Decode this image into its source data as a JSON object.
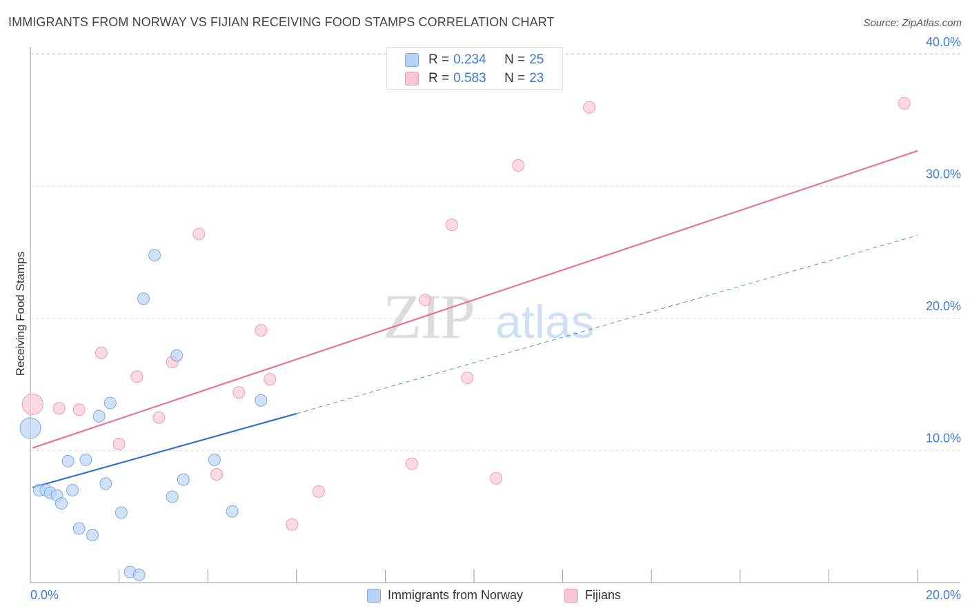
{
  "header": {
    "title": "IMMIGRANTS FROM NORWAY VS FIJIAN RECEIVING FOOD STAMPS CORRELATION CHART",
    "source": "Source: ZipAtlas.com"
  },
  "watermark": {
    "part1": "ZIP",
    "part2": "atlas"
  },
  "legend": {
    "rows": [
      {
        "r_label": "R =",
        "r_value": "0.234",
        "n_label": "N =",
        "n_value": "25"
      },
      {
        "r_label": "R =",
        "r_value": "0.583",
        "n_label": "N =",
        "n_value": "23"
      }
    ]
  },
  "bottom_legend": {
    "items": [
      {
        "label": "Immigrants from Norway"
      },
      {
        "label": "Fijians"
      }
    ]
  },
  "colors": {
    "norway_fill": "#b8d3f5",
    "norway_stroke": "#7ea9e0",
    "norway_line": "#2f73c9",
    "fijian_fill": "#f9c6d4",
    "fijian_stroke": "#ec9bb3",
    "fijian_line": "#e5739a",
    "tick_label": "#3a7ad5",
    "grid": "#dddddd"
  },
  "chart_data": {
    "type": "scatter",
    "title": "IMMIGRANTS FROM NORWAY VS FIJIAN RECEIVING FOOD STAMPS CORRELATION CHART",
    "xlabel": "",
    "ylabel": "Receiving Food Stamps",
    "xlim": [
      0,
      20
    ],
    "ylim": [
      0,
      40
    ],
    "x_tick_labels": [
      "0.0%",
      "20.0%"
    ],
    "y_ticks": [
      10,
      20,
      30,
      40
    ],
    "y_tick_labels": [
      "10.0%",
      "20.0%",
      "30.0%",
      "40.0%"
    ],
    "grid": true,
    "legend_placement": "top-center",
    "series": [
      {
        "name": "Immigrants from Norway",
        "r": 0.234,
        "n": 25,
        "points": [
          {
            "x": 0.0,
            "y": 11.7,
            "big": true
          },
          {
            "x": 0.2,
            "y": 7.0
          },
          {
            "x": 0.35,
            "y": 7.0
          },
          {
            "x": 0.45,
            "y": 6.8
          },
          {
            "x": 0.6,
            "y": 6.6
          },
          {
            "x": 0.7,
            "y": 6.0
          },
          {
            "x": 0.85,
            "y": 9.2
          },
          {
            "x": 0.95,
            "y": 7.0
          },
          {
            "x": 1.1,
            "y": 4.1
          },
          {
            "x": 1.25,
            "y": 9.3
          },
          {
            "x": 1.4,
            "y": 3.6
          },
          {
            "x": 1.55,
            "y": 12.6
          },
          {
            "x": 1.7,
            "y": 7.5
          },
          {
            "x": 1.8,
            "y": 13.6
          },
          {
            "x": 2.05,
            "y": 5.3
          },
          {
            "x": 2.25,
            "y": 0.8
          },
          {
            "x": 2.45,
            "y": 0.6
          },
          {
            "x": 2.55,
            "y": 21.5
          },
          {
            "x": 2.8,
            "y": 24.8
          },
          {
            "x": 3.2,
            "y": 6.5
          },
          {
            "x": 3.3,
            "y": 17.2
          },
          {
            "x": 3.45,
            "y": 7.8
          },
          {
            "x": 4.15,
            "y": 9.3
          },
          {
            "x": 4.55,
            "y": 5.4
          },
          {
            "x": 5.2,
            "y": 13.8
          }
        ],
        "trend": {
          "x": [
            0.05,
            6.0
          ],
          "y": [
            7.2,
            12.8
          ],
          "extended_to": [
            20.0,
            26.3
          ]
        }
      },
      {
        "name": "Fijians",
        "r": 0.583,
        "n": 23,
        "points": [
          {
            "x": 0.05,
            "y": 13.5,
            "big": true
          },
          {
            "x": 0.65,
            "y": 13.2
          },
          {
            "x": 1.1,
            "y": 13.1
          },
          {
            "x": 1.6,
            "y": 17.4
          },
          {
            "x": 2.0,
            "y": 10.5
          },
          {
            "x": 2.4,
            "y": 15.6
          },
          {
            "x": 2.9,
            "y": 12.5
          },
          {
            "x": 3.2,
            "y": 16.7
          },
          {
            "x": 3.8,
            "y": 26.4
          },
          {
            "x": 4.2,
            "y": 8.2
          },
          {
            "x": 4.7,
            "y": 14.4
          },
          {
            "x": 5.2,
            "y": 19.1
          },
          {
            "x": 5.4,
            "y": 15.4
          },
          {
            "x": 5.9,
            "y": 4.4
          },
          {
            "x": 6.5,
            "y": 6.9
          },
          {
            "x": 8.6,
            "y": 9.0
          },
          {
            "x": 8.9,
            "y": 21.4
          },
          {
            "x": 9.5,
            "y": 27.1
          },
          {
            "x": 9.85,
            "y": 15.5
          },
          {
            "x": 10.5,
            "y": 7.9
          },
          {
            "x": 11.0,
            "y": 31.6
          },
          {
            "x": 12.6,
            "y": 36.0
          },
          {
            "x": 19.7,
            "y": 36.3
          }
        ],
        "trend": {
          "x": [
            0.05,
            20.0
          ],
          "y": [
            10.2,
            32.7
          ]
        }
      }
    ]
  }
}
